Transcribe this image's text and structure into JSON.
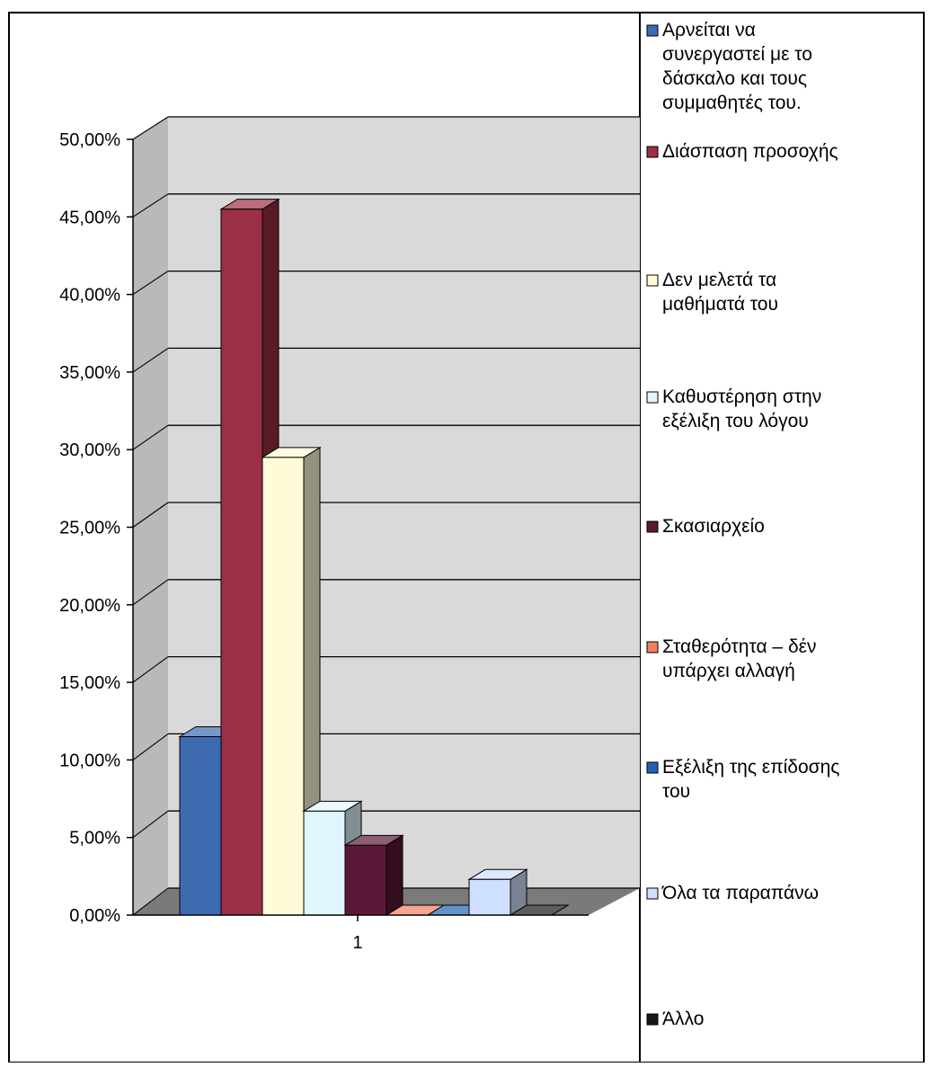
{
  "chart_data": {
    "type": "bar",
    "title": "",
    "xlabel": "",
    "ylabel": "",
    "categories": [
      "1"
    ],
    "ylim": [
      0,
      0.5
    ],
    "y_ticks": [
      "0,00%",
      "5,00%",
      "10,00%",
      "15,00%",
      "20,00%",
      "25,00%",
      "30,00%",
      "35,00%",
      "40,00%",
      "45,00%",
      "50,00%"
    ],
    "grid": true,
    "legend_position": "right",
    "series": [
      {
        "name": "Αρνείται να συνεργαστεί με το δάσκαλο και τους συμμαθητές του.",
        "values": [
          0.115
        ],
        "color": "#3d6bb0"
      },
      {
        "name": "Διάσπαση προσοχής",
        "values": [
          0.455
        ],
        "color": "#9b2f45"
      },
      {
        "name": "Δεν μελετά τα μαθήματά του",
        "values": [
          0.295
        ],
        "color": "#fffbd8"
      },
      {
        "name": "Καθυστέρηση στην εξέλιξη του λόγου",
        "values": [
          0.067
        ],
        "color": "#dff6ff"
      },
      {
        "name": "Σκασιαρχείο",
        "values": [
          0.045
        ],
        "color": "#5a1738"
      },
      {
        "name": "Σταθερότητα – δέν υπάρχει αλλαγή",
        "values": [
          0.0
        ],
        "color": "#f27f60"
      },
      {
        "name": "Εξέλιξη της επίδοσης του",
        "values": [
          0.0
        ],
        "color": "#1e64b4"
      },
      {
        "name": "Όλα τα παραπάνω",
        "values": [
          0.023
        ],
        "color": "#cfe0ff"
      },
      {
        "name": "Άλλο",
        "values": [
          0.0
        ],
        "color": "#181818"
      }
    ]
  }
}
